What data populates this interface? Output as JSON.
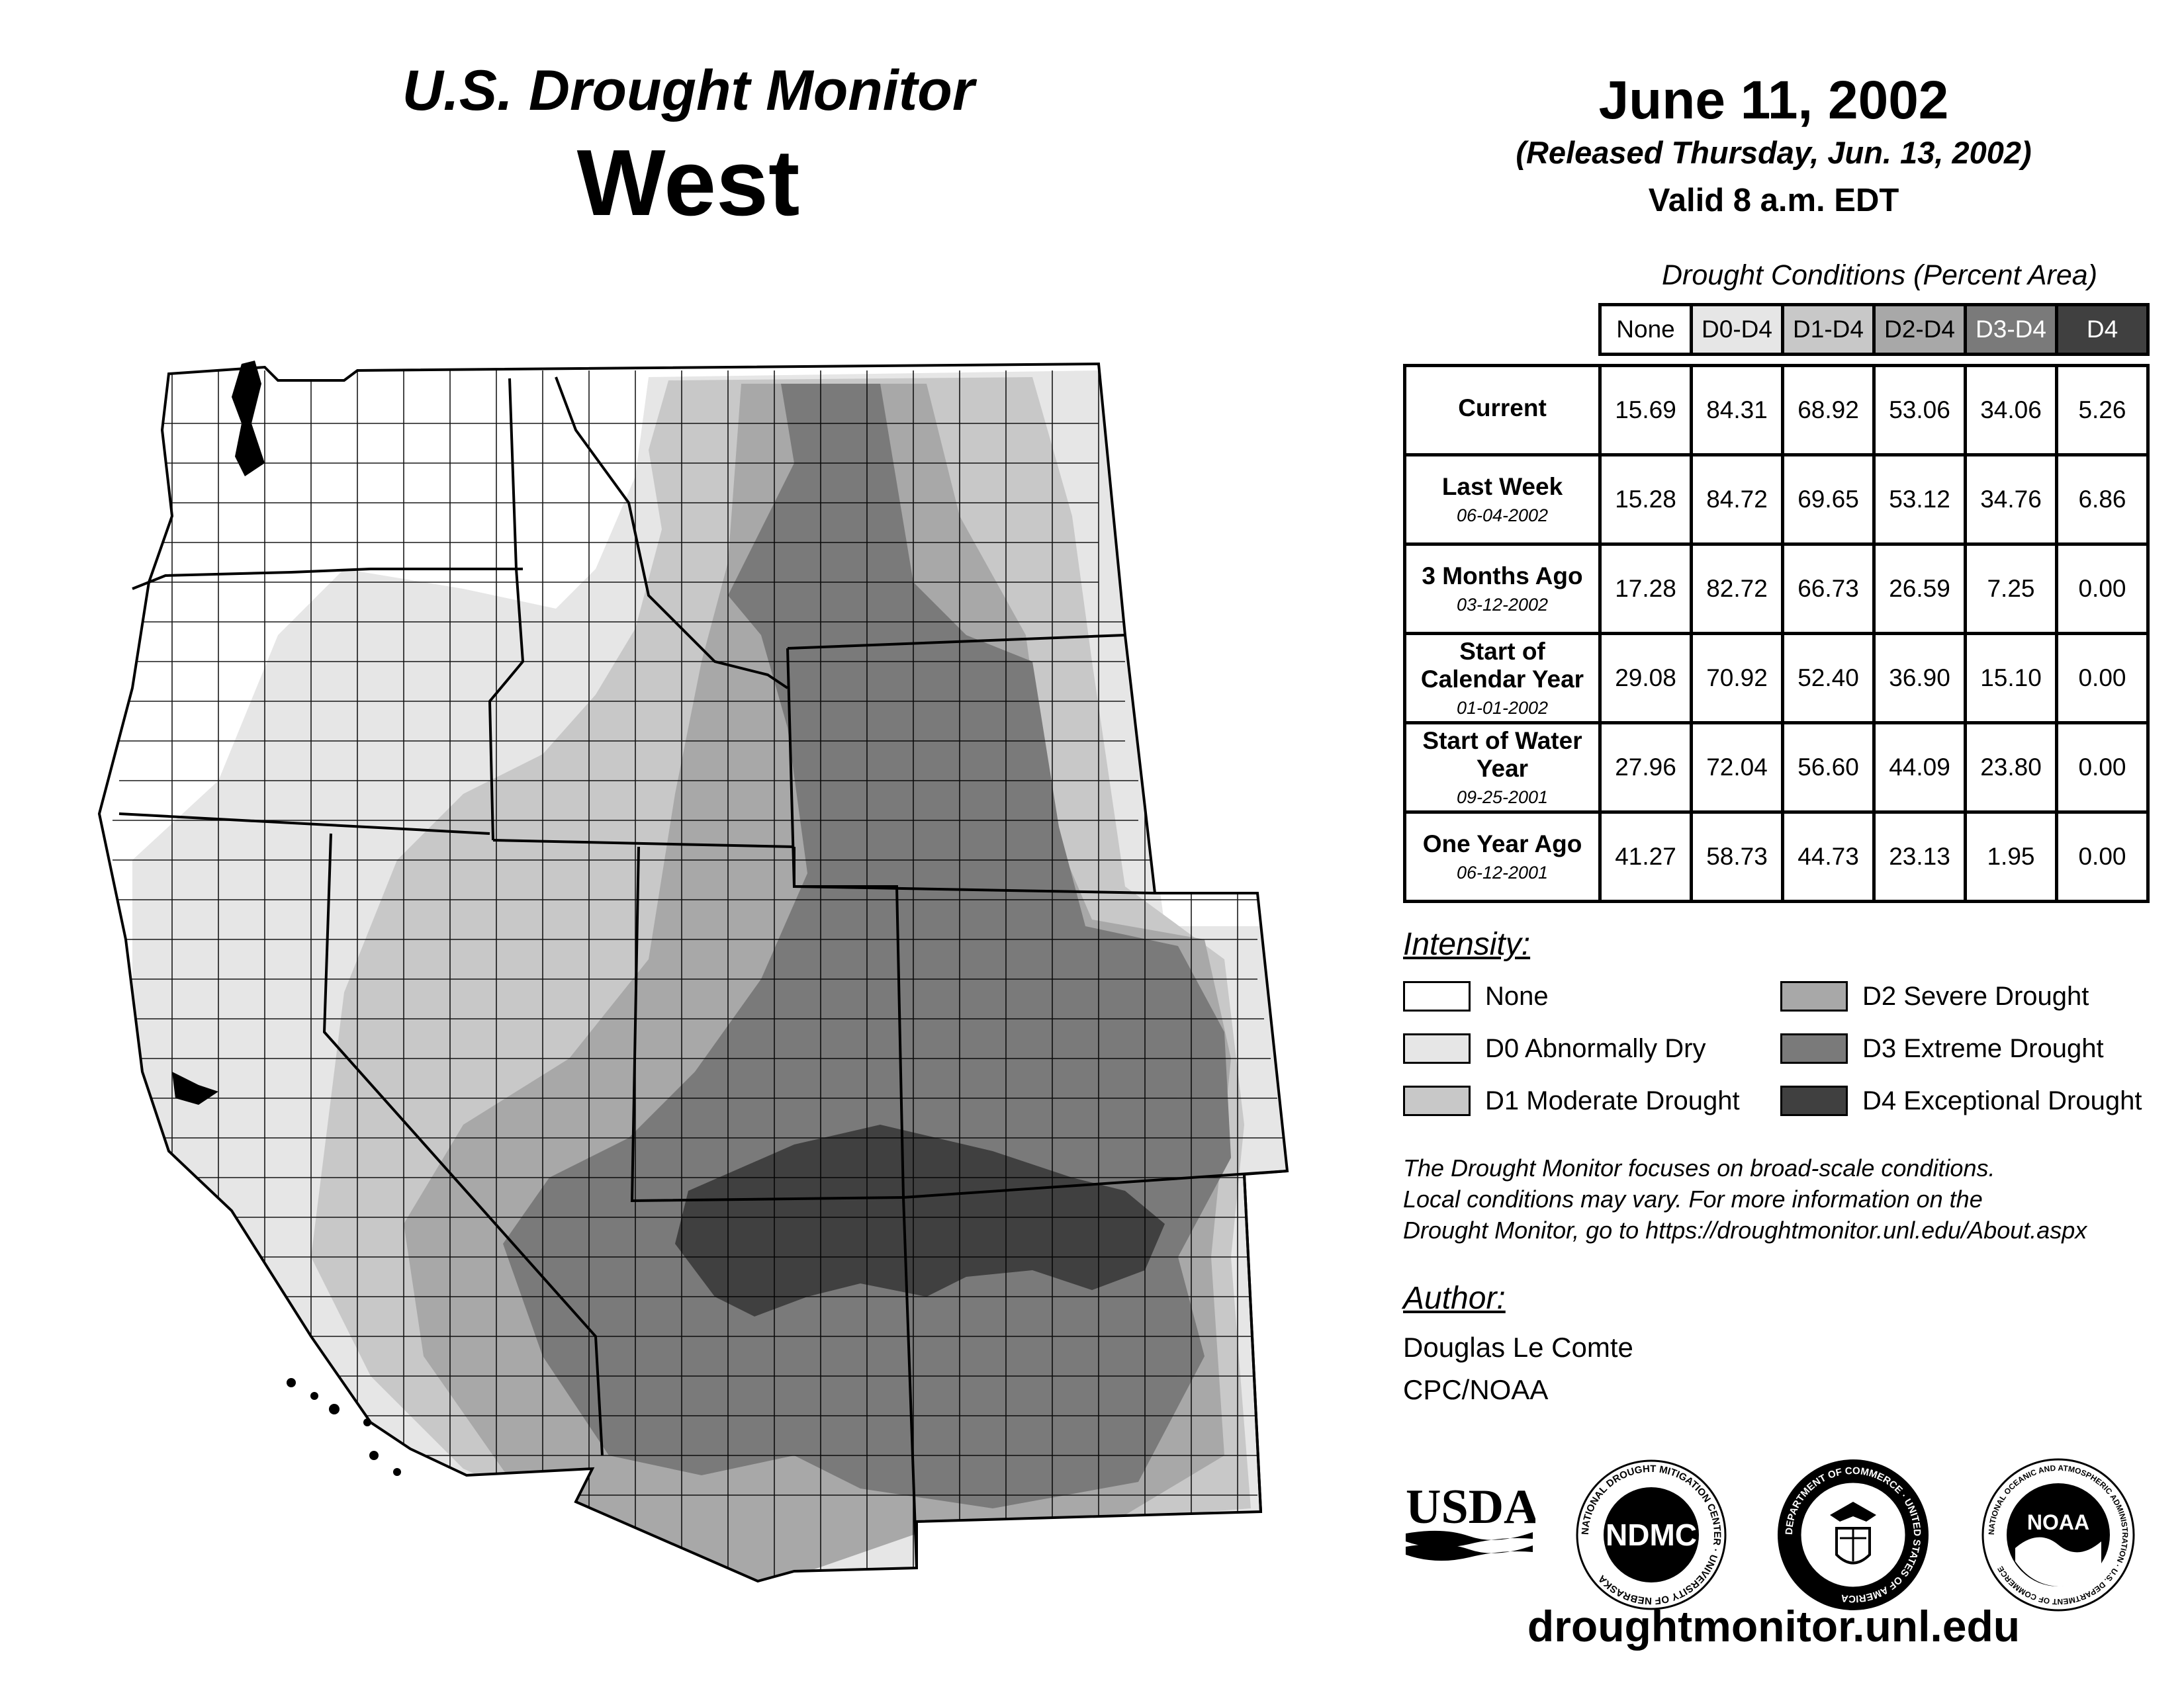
{
  "header": {
    "title_line1": "U.S. Drought Monitor",
    "title_line2": "West",
    "date": "June 11, 2002",
    "released": "(Released Thursday, Jun. 13, 2002)",
    "valid": "Valid 8 a.m. EDT"
  },
  "table": {
    "caption": "Drought Conditions (Percent Area)",
    "columns": [
      "None",
      "D0-D4",
      "D1-D4",
      "D2-D4",
      "D3-D4",
      "D4"
    ],
    "column_colors": [
      "#ffffff",
      "#e6e6e6",
      "#c8c8c8",
      "#a8a8a8",
      "#7a7a7a",
      "#404040"
    ],
    "rows": [
      {
        "label": "Current",
        "date": "",
        "values": [
          "15.69",
          "84.31",
          "68.92",
          "53.06",
          "34.06",
          "5.26"
        ]
      },
      {
        "label": "Last Week",
        "date": "06-04-2002",
        "values": [
          "15.28",
          "84.72",
          "69.65",
          "53.12",
          "34.76",
          "6.86"
        ]
      },
      {
        "label": "3 Months Ago",
        "date": "03-12-2002",
        "values": [
          "17.28",
          "82.72",
          "66.73",
          "26.59",
          "7.25",
          "0.00"
        ]
      },
      {
        "label": "Start of Calendar Year",
        "date": "01-01-2002",
        "values": [
          "29.08",
          "70.92",
          "52.40",
          "36.90",
          "15.10",
          "0.00"
        ]
      },
      {
        "label": "Start of Water Year",
        "date": "09-25-2001",
        "values": [
          "27.96",
          "72.04",
          "56.60",
          "44.09",
          "23.80",
          "0.00"
        ]
      },
      {
        "label": "One Year Ago",
        "date": "06-12-2001",
        "values": [
          "41.27",
          "58.73",
          "44.73",
          "23.13",
          "1.95",
          "0.00"
        ]
      }
    ]
  },
  "legend": {
    "title": "Intensity:",
    "items": [
      {
        "label": "None",
        "color": "#ffffff"
      },
      {
        "label": "D0 Abnormally Dry",
        "color": "#e6e6e6"
      },
      {
        "label": "D1 Moderate Drought",
        "color": "#c8c8c8"
      },
      {
        "label": "D2 Severe Drought",
        "color": "#a8a8a8"
      },
      {
        "label": "D3 Extreme Drought",
        "color": "#7a7a7a"
      },
      {
        "label": "D4 Exceptional Drought",
        "color": "#404040"
      }
    ]
  },
  "disclaimer": [
    "The Drought Monitor focuses on broad-scale conditions.",
    "Local conditions may vary. For more information on the",
    "Drought Monitor, go to https://droughtmonitor.unl.edu/About.aspx"
  ],
  "author": {
    "label": "Author:",
    "name": "Douglas Le Comte",
    "org": "CPC/NOAA"
  },
  "logos": {
    "usda": "USDA",
    "ndmc": "NDMC",
    "ndmc_ring": "NATIONAL DROUGHT MITIGATION CENTER · UNIVERSITY OF NEBRASKA",
    "doc_ring": "DEPARTMENT OF COMMERCE · UNITED STATES OF AMERICA",
    "noaa": "NOAA",
    "noaa_ring": "NATIONAL OCEANIC AND ATMOSPHERIC ADMINISTRATION · U.S. DEPARTMENT OF COMMERCE"
  },
  "url": "droughtmonitor.unl.edu"
}
